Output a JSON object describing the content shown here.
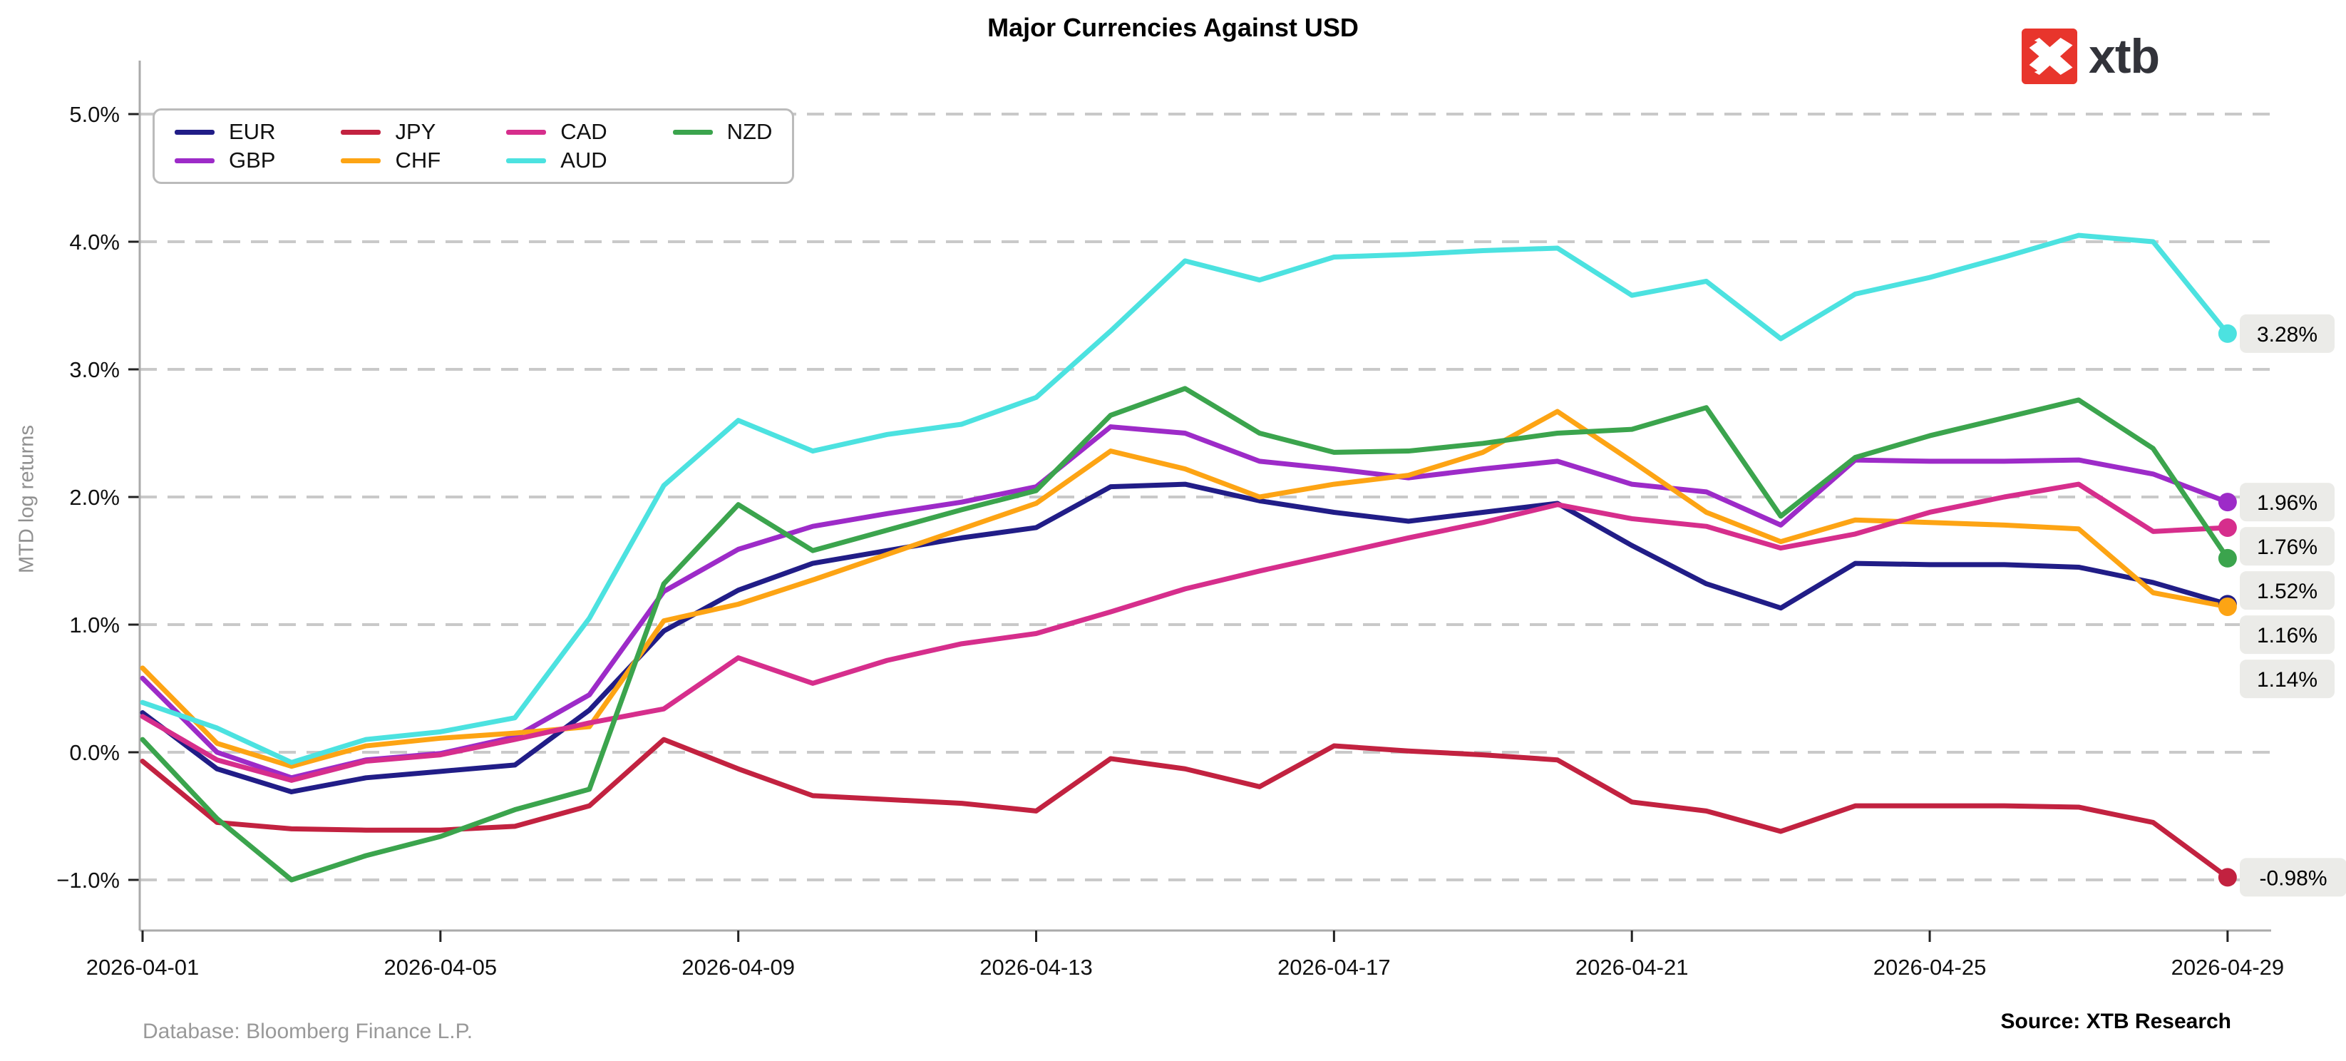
{
  "page": {
    "title": "Major Currencies Against USD",
    "y_axis_label": "MTD log returns",
    "database_note": "Database: Bloomberg Finance L.P.",
    "source_note": "Source: XTB Research",
    "logo_text": "xtb",
    "logo_badge_color": "#e8352c"
  },
  "chart_data": {
    "type": "line",
    "title": "Major Currencies Against USD",
    "ylabel": "MTD log returns",
    "grid": "horizontal-dashed",
    "legend_position": "upper-left",
    "legend_columns": 4,
    "ylim": [
      -1.4,
      5.4
    ],
    "x": [
      "2026-04-01",
      "2026-04-02",
      "2026-04-03",
      "2026-04-04",
      "2026-04-05",
      "2026-04-06",
      "2026-04-07",
      "2026-04-08",
      "2026-04-09",
      "2026-04-10",
      "2026-04-11",
      "2026-04-12",
      "2026-04-13",
      "2026-04-14",
      "2026-04-15",
      "2026-04-16",
      "2026-04-17",
      "2026-04-18",
      "2026-04-19",
      "2026-04-20",
      "2026-04-21",
      "2026-04-22",
      "2026-04-23",
      "2026-04-24",
      "2026-04-25",
      "2026-04-26",
      "2026-04-27",
      "2026-04-28",
      "2026-04-29"
    ],
    "x_tick_labels": [
      "2026-04-01",
      "2026-04-05",
      "2026-04-09",
      "2026-04-13",
      "2026-04-17",
      "2026-04-21",
      "2026-04-25",
      "2026-04-29"
    ],
    "y_tick_labels": [
      "5.0%",
      "4.0%",
      "3.0%",
      "2.0%",
      "1.0%",
      "0.0%",
      "−1.0%"
    ],
    "y_tick_values": [
      5,
      4,
      3,
      2,
      1,
      0,
      -1
    ],
    "series": [
      {
        "name": "EUR",
        "color": "#211d87",
        "end_label": "1.16%",
        "values": [
          0.31,
          -0.13,
          -0.31,
          -0.2,
          -0.15,
          -0.1,
          0.33,
          0.95,
          1.27,
          1.48,
          1.58,
          1.68,
          1.76,
          2.08,
          2.1,
          1.97,
          1.88,
          1.81,
          1.88,
          1.95,
          1.62,
          1.32,
          1.13,
          1.48,
          1.47,
          1.47,
          1.45,
          1.33,
          1.16
        ]
      },
      {
        "name": "GBP",
        "color": "#9d2bc8",
        "end_label": "1.96%",
        "values": [
          0.58,
          0.0,
          -0.2,
          -0.06,
          -0.01,
          0.12,
          0.45,
          1.26,
          1.59,
          1.77,
          1.87,
          1.96,
          2.08,
          2.55,
          2.5,
          2.28,
          2.22,
          2.15,
          2.22,
          2.28,
          2.1,
          2.04,
          1.78,
          2.29,
          2.28,
          2.28,
          2.29,
          2.18,
          1.96
        ]
      },
      {
        "name": "JPY",
        "color": "#c22240",
        "end_label": "-0.98%",
        "values": [
          -0.07,
          -0.55,
          -0.6,
          -0.61,
          -0.61,
          -0.58,
          -0.42,
          0.1,
          -0.13,
          -0.34,
          -0.37,
          -0.4,
          -0.46,
          -0.05,
          -0.13,
          -0.27,
          0.05,
          0.01,
          -0.02,
          -0.06,
          -0.39,
          -0.46,
          -0.62,
          -0.42,
          -0.42,
          -0.42,
          -0.43,
          -0.55,
          -0.98
        ]
      },
      {
        "name": "CHF",
        "color": "#fda414",
        "end_label": "1.14%",
        "values": [
          0.66,
          0.07,
          -0.11,
          0.05,
          0.11,
          0.15,
          0.2,
          1.03,
          1.16,
          1.35,
          1.55,
          1.75,
          1.95,
          2.36,
          2.22,
          2.0,
          2.1,
          2.17,
          2.35,
          2.67,
          2.28,
          1.88,
          1.65,
          1.82,
          1.8,
          1.78,
          1.75,
          1.25,
          1.14
        ]
      },
      {
        "name": "CAD",
        "color": "#d62e8c",
        "end_label": "1.76%",
        "values": [
          0.28,
          -0.06,
          -0.22,
          -0.07,
          -0.02,
          0.1,
          0.23,
          0.34,
          0.74,
          0.54,
          0.72,
          0.85,
          0.93,
          1.1,
          1.28,
          1.42,
          1.55,
          1.68,
          1.8,
          1.94,
          1.83,
          1.77,
          1.6,
          1.71,
          1.88,
          2.0,
          2.1,
          1.73,
          1.76
        ]
      },
      {
        "name": "AUD",
        "color": "#4ce2e0",
        "end_label": "3.28%",
        "values": [
          0.39,
          0.19,
          -0.08,
          0.1,
          0.16,
          0.27,
          1.05,
          2.09,
          2.6,
          2.36,
          2.49,
          2.57,
          2.78,
          3.3,
          3.85,
          3.7,
          3.88,
          3.9,
          3.93,
          3.95,
          3.58,
          3.69,
          3.24,
          3.59,
          3.72,
          3.88,
          4.05,
          4.0,
          3.28
        ]
      },
      {
        "name": "NZD",
        "color": "#3ba44d",
        "end_label": "1.52%",
        "values": [
          0.1,
          -0.52,
          -1.0,
          -0.81,
          -0.66,
          -0.45,
          -0.29,
          1.32,
          1.94,
          1.58,
          1.74,
          1.9,
          2.05,
          2.64,
          2.85,
          2.5,
          2.35,
          2.36,
          2.42,
          2.5,
          2.53,
          2.7,
          1.85,
          2.31,
          2.48,
          2.62,
          2.76,
          2.38,
          1.52
        ]
      }
    ]
  }
}
